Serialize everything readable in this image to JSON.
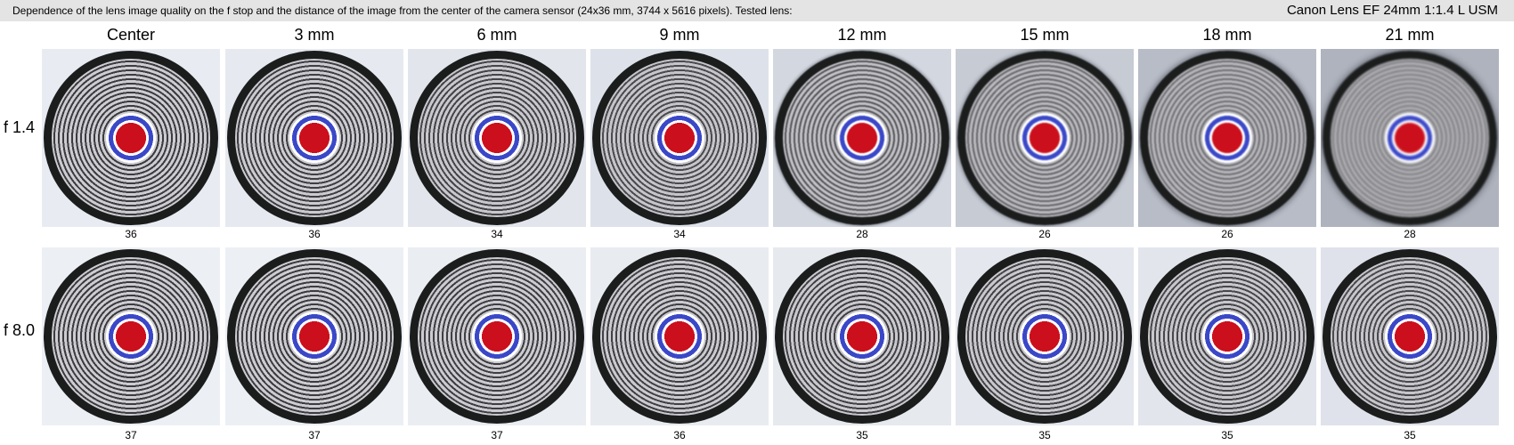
{
  "header": {
    "description": "Dependence of the lens image quality on the f stop and the distance of the image from the center of the camera sensor (24x36 mm, 3744 x 5616 pixels).  Tested lens:",
    "lens_name": "Canon Lens EF 24mm 1:1.4 L USM"
  },
  "columns": [
    "Center",
    "3 mm",
    "6 mm",
    "9 mm",
    "12 mm",
    "15 mm",
    "18 mm",
    "21 mm"
  ],
  "rows": [
    {
      "label": "f 1.4",
      "scores": [
        "36",
        "36",
        "34",
        "34",
        "28",
        "26",
        "26",
        "28"
      ],
      "sharpness": [
        1.0,
        0.97,
        0.9,
        0.82,
        0.72,
        0.58,
        0.45,
        0.3
      ],
      "background": [
        "#e8ecf2",
        "#e6eaf0",
        "#e2e6ec",
        "#dde2ea",
        "#d3d8e0",
        "#c6cbd4",
        "#b7bcc6",
        "#aeb3bd"
      ]
    },
    {
      "label": "f 8.0",
      "scores": [
        "37",
        "37",
        "37",
        "36",
        "35",
        "35",
        "35",
        "35"
      ],
      "sharpness": [
        1.0,
        1.0,
        0.97,
        0.95,
        0.93,
        0.9,
        0.88,
        0.85
      ],
      "background": [
        "#eceff4",
        "#eceff4",
        "#eaedf2",
        "#e8ebf0",
        "#e6e9ee",
        "#e4e7ee",
        "#e2e5ec",
        "#dfe2ea"
      ]
    }
  ],
  "colors": {
    "ring_dark": "#1b1d1d",
    "ring_light": "#c4c6c8",
    "blue_ring": "#3a48c8",
    "center_dot": "#cc0f1c"
  }
}
